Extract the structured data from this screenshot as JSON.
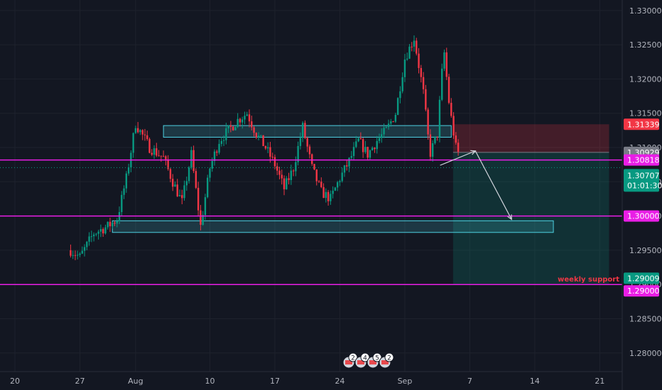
{
  "chart_data": {
    "type": "candlestick",
    "ylim": [
      1.2777,
      1.3305
    ],
    "y_ticks": [
      "1.33000",
      "1.32500",
      "1.32000",
      "1.31500",
      "1.31000",
      "1.30500",
      "1.30000",
      "1.29500",
      "1.29000",
      "1.28500",
      "1.28000"
    ],
    "x_ticks": [
      "20",
      "27",
      "Aug",
      "10",
      "17",
      "24",
      "Sep",
      "7",
      "14",
      "21"
    ],
    "current_price": "1.30707",
    "countdown": "01:01:30",
    "price_tags": [
      {
        "label": "1.31339",
        "color": "#f23645",
        "price": 1.31339
      },
      {
        "label": "1.30929",
        "color": "#787b86",
        "price": 1.30929
      },
      {
        "label": "1.30818",
        "color": "#e91ee6",
        "price": 1.30818
      },
      {
        "label": "1.30000",
        "color": "#e91ee6",
        "price": 1.3
      },
      {
        "label": "1.29009",
        "color": "#089981",
        "price": 1.29009
      },
      {
        "label": "1.29000",
        "color": "#e91ee6",
        "price": 1.29
      }
    ],
    "horizontal_lines": [
      {
        "price": 1.30818,
        "color": "#e91ee6"
      },
      {
        "price": 1.3,
        "color": "#e91ee6"
      },
      {
        "price": 1.29,
        "color": "#e91ee6",
        "label": "weekly support"
      }
    ],
    "zones": [
      {
        "from_day": 16.0,
        "to_day": 47.0,
        "top": 1.3132,
        "bottom": 1.3115,
        "color": "#4dd0e1"
      },
      {
        "from_day": 10.5,
        "to_day": 58.0,
        "top": 1.2993,
        "bottom": 1.2976,
        "color": "#4dd0e1"
      }
    ],
    "position": {
      "from_day": 47.2,
      "to_day": 64.0,
      "entry": 1.30929,
      "stop": 1.31339,
      "target": 1.29009
    },
    "projection": [
      {
        "day": 45.8,
        "price": 1.3074
      },
      {
        "day": 49.6,
        "price": 1.3095
      },
      {
        "day": 53.5,
        "price": 1.2995
      }
    ],
    "event_badges": [
      "2",
      "4",
      "5",
      "2"
    ],
    "series": [
      {
        "name": "",
        "values": []
      }
    ],
    "candles_note": ""
  }
}
